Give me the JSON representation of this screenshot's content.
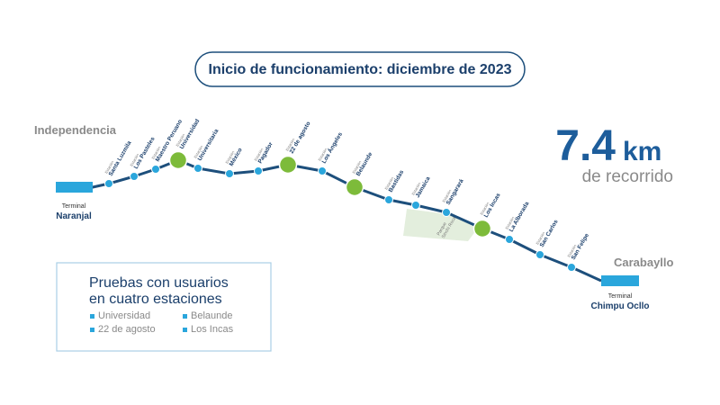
{
  "header": {
    "title": "Inicio de funcionamiento: diciembre de 2023"
  },
  "distance": {
    "number": "7.4",
    "unit": "km",
    "caption": "de recorrido"
  },
  "districts": [
    "Independencia",
    "Carabayllo"
  ],
  "terminals": [
    {
      "label": "Terminal",
      "name": "Naranjal"
    },
    {
      "label": "Terminal",
      "name": "Chimpu Ocllo"
    }
  ],
  "stations": [
    {
      "label": "Estación",
      "name": "Santa Luzmila"
    },
    {
      "label": "Estación",
      "name": "Los Pasteles"
    },
    {
      "label": "Estación",
      "name": "Maestro Peruano"
    },
    {
      "label": "Estación",
      "name": "Universidad"
    },
    {
      "label": "Estación",
      "name": "Universitaria"
    },
    {
      "label": "Estación",
      "name": "México"
    },
    {
      "label": "Estación",
      "name": "Pagador"
    },
    {
      "label": "Estación",
      "name": "22 de agosto"
    },
    {
      "label": "Estación",
      "name": "Los Ángeles"
    },
    {
      "label": "Estación",
      "name": "Belaunde"
    },
    {
      "label": "Estación",
      "name": "Bastidas"
    },
    {
      "label": "Estación",
      "name": "Jamaica"
    },
    {
      "label": "Estación",
      "name": "Sangarará"
    },
    {
      "label": "Estación",
      "name": "Los Incas"
    },
    {
      "label": "Estación",
      "name": "La Alborada"
    },
    {
      "label": "Estación",
      "name": "San Carlos"
    },
    {
      "label": "Estación",
      "name": "San Felipe"
    }
  ],
  "park": {
    "lines": [
      "Parque",
      "Sinchi Roca"
    ]
  },
  "legend": {
    "title_lines": [
      "Pruebas con usuarios",
      "en cuatro estaciones"
    ],
    "items": [
      "Universidad",
      "Belaunde",
      "22 de agosto",
      "Los Incas"
    ]
  }
}
